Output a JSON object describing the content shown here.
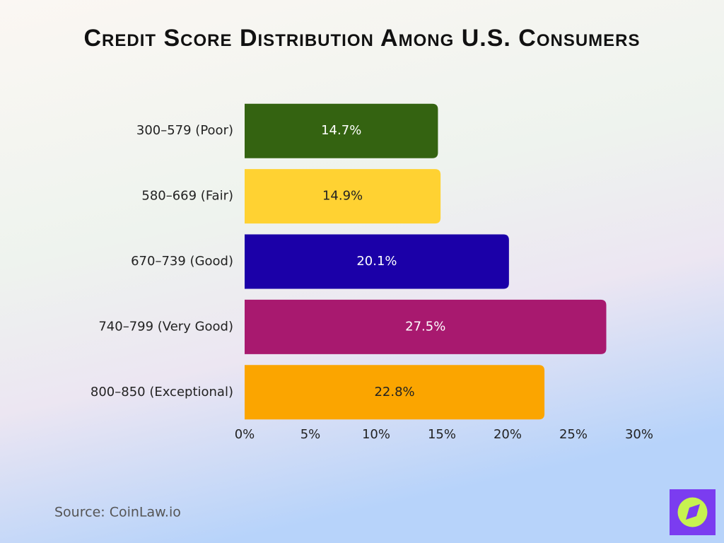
{
  "chart_data": {
    "type": "bar",
    "orientation": "horizontal",
    "title": "Credit Score Distribution Among U.S. Consumers",
    "categories": [
      "300–579 (Poor)",
      "580–669 (Fair)",
      "670–739 (Good)",
      "740–799 (Very Good)",
      "800–850 (Exceptional)"
    ],
    "values": [
      14.7,
      14.9,
      20.1,
      27.5,
      22.8
    ],
    "value_labels": [
      "14.7%",
      "14.9%",
      "20.1%",
      "27.5%",
      "22.8%"
    ],
    "colors": [
      "#346311",
      "#ffd232",
      "#1b00a8",
      "#a8196f",
      "#fba500"
    ],
    "xlim": [
      0,
      30
    ],
    "xticks": [
      {
        "value": 0,
        "label": "0%"
      },
      {
        "value": 5,
        "label": "5%"
      },
      {
        "value": 10,
        "label": "10%"
      },
      {
        "value": 15,
        "label": "15%"
      },
      {
        "value": 20,
        "label": "20%"
      },
      {
        "value": 25,
        "label": "25%"
      },
      {
        "value": 30,
        "label": "30%"
      }
    ],
    "grid": false,
    "source": "Source: CoinLaw.io"
  }
}
